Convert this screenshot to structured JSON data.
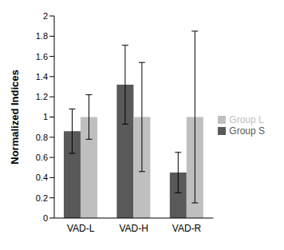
{
  "chart_data": {
    "type": "bar",
    "y_label": "Normalized Indices",
    "categories": [
      "VAD-L",
      "VAD-H",
      "VAD-R"
    ],
    "series": [
      {
        "name": "Group S",
        "color": "#595959",
        "values": [
          0.86,
          1.32,
          0.45
        ],
        "errors": [
          0.22,
          0.39,
          0.2
        ]
      },
      {
        "name": "Group L",
        "color": "#bfbfbf",
        "values": [
          1,
          1,
          1
        ],
        "errors": [
          0.22,
          0.54,
          0.85
        ]
      }
    ],
    "ylim": [
      0,
      2
    ],
    "yticks": [
      0,
      0.2,
      0.4,
      0.6,
      0.8,
      1,
      1.2,
      1.4,
      1.6,
      1.8,
      2
    ],
    "grid": false,
    "legend": "right"
  }
}
